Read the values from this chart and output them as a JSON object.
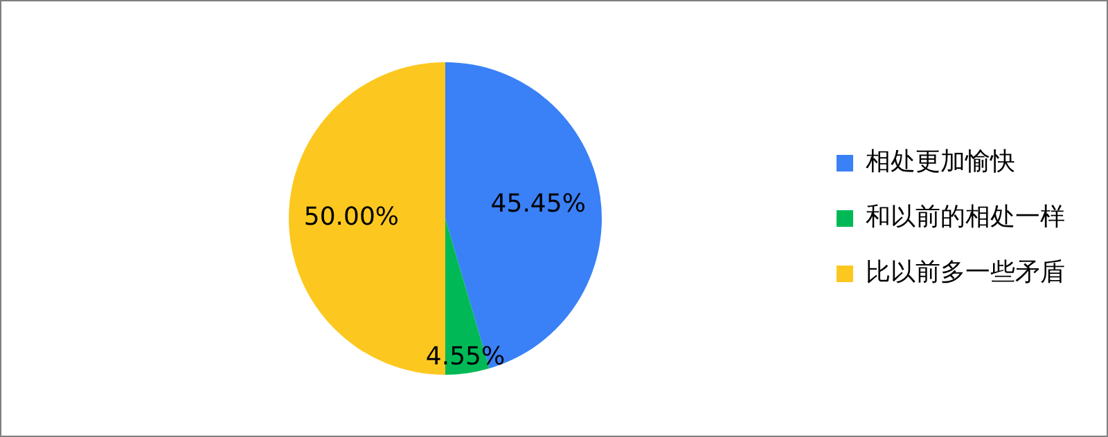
{
  "chart_data": {
    "type": "pie",
    "categories": [
      "相处更加愉快",
      "和以前的相处一样",
      "比以前多一些矛盾"
    ],
    "values": [
      45.45,
      4.55,
      50.0
    ],
    "colors": [
      "#3a80f7",
      "#00b956",
      "#fcc81f"
    ],
    "value_labels": [
      "45.45%",
      "4.55%",
      "50.00%"
    ],
    "legend": "right"
  }
}
